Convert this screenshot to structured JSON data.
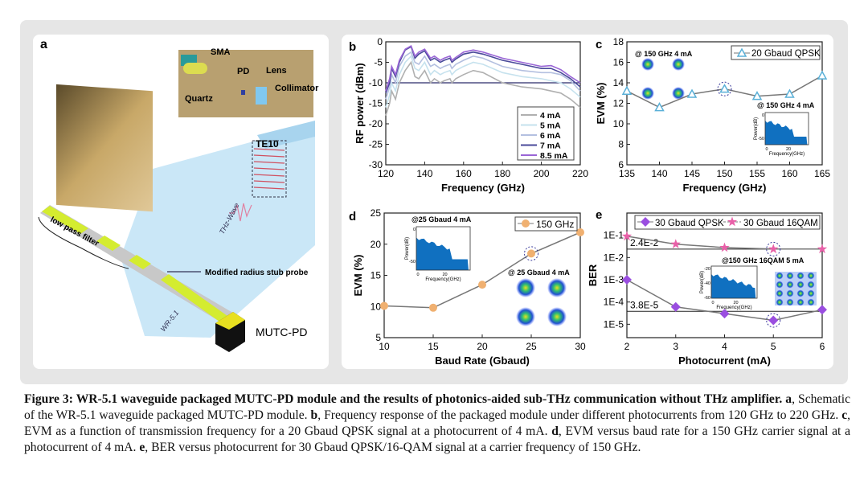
{
  "panel_a": {
    "label": "a",
    "labels": {
      "sma": "SMA",
      "pd": "PD",
      "lens": "Lens",
      "quartz": "Quartz",
      "collimator": "Collimator",
      "te10": "TE10",
      "thz_wave": "THz-Wave",
      "low_pass_filter": "low pass filter",
      "probe": "Modified radius stub probe",
      "wr51": "WR-5.1",
      "mutc_pd": "MUTC-PD"
    }
  },
  "chart_data": [
    {
      "panel": "b",
      "type": "line",
      "xlabel": "Frequency (GHz)",
      "ylabel": "RF power (dBm)",
      "xlim": [
        120,
        220
      ],
      "ylim": [
        -30,
        0
      ],
      "xticks": [
        120,
        140,
        160,
        180,
        200,
        220
      ],
      "yticks": [
        0,
        -5,
        -10,
        -15,
        -20,
        -25,
        -30
      ],
      "reference_line": -10,
      "legend_position": "bottom-right",
      "x": [
        120,
        122,
        123,
        125,
        127,
        130,
        133,
        135,
        137,
        140,
        143,
        145,
        148,
        150,
        153,
        154,
        156,
        160,
        165,
        170,
        180,
        190,
        200,
        205,
        210,
        215,
        220
      ],
      "series": [
        {
          "name": "4 mA",
          "color": "#b0b0b0",
          "values": [
            -18,
            -15,
            -12,
            -14,
            -10,
            -7,
            -5,
            -8.5,
            -9,
            -7,
            -10,
            -9,
            -10,
            -9.5,
            -9,
            -10,
            -9,
            -8,
            -7,
            -7.5,
            -10,
            -11,
            -11.5,
            -12,
            -12.5,
            -14,
            -16
          ]
        },
        {
          "name": "5 mA",
          "color": "#c6e2ee",
          "values": [
            -16,
            -13,
            -10,
            -12,
            -8,
            -5,
            -3.5,
            -6.5,
            -7,
            -5,
            -8,
            -7,
            -8,
            -7.5,
            -7,
            -8,
            -7,
            -6,
            -5,
            -5.5,
            -7.5,
            -8.5,
            -9,
            -9.5,
            -10,
            -11.5,
            -13.5
          ]
        },
        {
          "name": "6 mA",
          "color": "#b4c0e0",
          "values": [
            -14,
            -11,
            -8,
            -10,
            -6,
            -3.5,
            -2.5,
            -5,
            -5.5,
            -3.5,
            -6,
            -5.5,
            -6.5,
            -6,
            -5.5,
            -6.5,
            -5.5,
            -4.5,
            -3.5,
            -4,
            -6,
            -7,
            -7.5,
            -7.5,
            -8,
            -9.5,
            -12
          ]
        },
        {
          "name": "7 mA",
          "color": "#4a4a9a",
          "values": [
            -12.5,
            -10,
            -6.5,
            -8.5,
            -5,
            -2,
            -1.2,
            -4,
            -3,
            -2.2,
            -4.5,
            -4,
            -5,
            -4.5,
            -4,
            -5,
            -4.2,
            -3,
            -2.5,
            -3,
            -4.5,
            -5.5,
            -6.5,
            -6.5,
            -7.5,
            -9,
            -11
          ]
        },
        {
          "name": "8.5 mA",
          "color": "#9a66d6",
          "values": [
            -12,
            -9,
            -6,
            -8,
            -4.5,
            -1.8,
            -1,
            -3.5,
            -2.5,
            -1.8,
            -4,
            -3.5,
            -4.5,
            -4,
            -3.5,
            -4.5,
            -3.8,
            -2.5,
            -2,
            -2.5,
            -4,
            -5,
            -6,
            -5.8,
            -6.8,
            -8.5,
            -10
          ]
        }
      ]
    },
    {
      "panel": "c",
      "type": "line",
      "xlabel": "Frequency (GHz)",
      "ylabel": "EVM (%)",
      "xlim": [
        135,
        165
      ],
      "ylim": [
        6,
        18
      ],
      "xticks": [
        135,
        140,
        145,
        150,
        155,
        160,
        165
      ],
      "yticks": [
        6,
        8,
        10,
        12,
        14,
        16,
        18
      ],
      "legend_position": "top-right",
      "x": [
        135,
        140,
        145,
        150,
        155,
        160,
        165
      ],
      "series": [
        {
          "name": "20 Gbaud QPSK",
          "color": "#5ab0d8",
          "marker": "triangle-open",
          "values": [
            13.2,
            11.6,
            12.9,
            13.4,
            12.7,
            12.9,
            14.7
          ]
        }
      ],
      "highlight_x": 150,
      "insets": {
        "constellation_label": "@ 150 GHz   4 mA",
        "spectrum_label": "@ 150 GHz   4 mA",
        "spectrum_xlabel": "Frequency(GHz)",
        "spectrum_ylabel": "Power(dB)",
        "spectrum_xticks": [
          "0",
          "20"
        ],
        "spectrum_yticks": [
          "0",
          "-50"
        ]
      }
    },
    {
      "panel": "d",
      "type": "line",
      "xlabel": "Baud Rate (Gbaud)",
      "ylabel": "EVM (%)",
      "xlim": [
        10,
        30
      ],
      "ylim": [
        5,
        25
      ],
      "xticks": [
        10,
        15,
        20,
        25,
        30
      ],
      "yticks": [
        5,
        10,
        15,
        20,
        25
      ],
      "legend_position": "top-right",
      "x": [
        10,
        15,
        20,
        25,
        30
      ],
      "series": [
        {
          "name": "150 GHz",
          "color": "#f0b070",
          "marker": "circle",
          "values": [
            10.1,
            9.8,
            13.5,
            18.5,
            21.9
          ]
        }
      ],
      "highlight_x": 25,
      "insets": {
        "spectrum_label": "@25 Gbaud   4 mA",
        "constellation_label": "@ 25 Gbaud   4 mA",
        "spectrum_xlabel": "Frequency(GHz)",
        "spectrum_ylabel": "Power(dB)",
        "spectrum_xticks": [
          "0",
          "20"
        ],
        "spectrum_yticks": [
          "0",
          "-50"
        ]
      }
    },
    {
      "panel": "e",
      "type": "line",
      "yscale": "log",
      "xlabel": "Photocurrent (mA)",
      "ylabel": "BER",
      "xlim": [
        2,
        6
      ],
      "ylim": [
        2.5e-06,
        1
      ],
      "xticks": [
        2,
        3,
        4,
        5,
        6
      ],
      "yticks": [
        0.1,
        0.01,
        0.001,
        0.0001,
        1e-05
      ],
      "ytick_labels": [
        "1E-1",
        "1E-2",
        "1E-3",
        "1E-4",
        "1E-5"
      ],
      "legend_position": "top",
      "x": [
        2,
        3,
        4,
        5,
        6
      ],
      "series": [
        {
          "name": "30 Gbaud QPSK",
          "color": "#9a4ee0",
          "marker": "diamond",
          "values": [
            0.001,
            6e-05,
            3e-05,
            1.5e-05,
            4.5e-05
          ]
        },
        {
          "name": "30 Gbaud 16QAM",
          "color": "#e860a8",
          "marker": "star",
          "values": [
            0.09,
            0.04,
            0.028,
            0.024,
            0.024
          ]
        }
      ],
      "thresholds": [
        {
          "value": 0.024,
          "label": "2.4E-2"
        },
        {
          "value": 3.8e-05,
          "label": "3.8E-5"
        }
      ],
      "highlight_x": 5,
      "insets": {
        "label": "@150 GHz   16QAM    5 mA",
        "spectrum_xlabel": "Frequency(GHz)",
        "spectrum_ylabel": "Power(dB)",
        "spectrum_xticks": [
          "0",
          "20"
        ],
        "spectrum_yticks": [
          "-20",
          "-40",
          "-60"
        ]
      }
    }
  ],
  "caption": {
    "title": "Figure 3: WR-5.1 waveguide packaged MUTC-PD module and the results of photonics-aided sub-THz communication without THz amplifier",
    "parts": [
      {
        "key": "a",
        "text": ", Schematic of the WR-5.1 waveguide packaged MUTC-PD module. "
      },
      {
        "key": "b",
        "text": ", Frequency response of the packaged module under different photocurrents from 120 GHz to 220 GHz. "
      },
      {
        "key": "c",
        "text": ", EVM as a function of transmission frequency for a 20 Gbaud QPSK signal at a photocurrent of 4 mA. "
      },
      {
        "key": "d",
        "text": ", EVM versus baud rate for a 150 GHz carrier signal at a photocurrent of 4 mA. "
      },
      {
        "key": "e",
        "text": ", BER versus photocurrent for 30 Gbaud QPSK/16-QAM signal at a carrier frequency of 150 GHz."
      }
    ]
  }
}
